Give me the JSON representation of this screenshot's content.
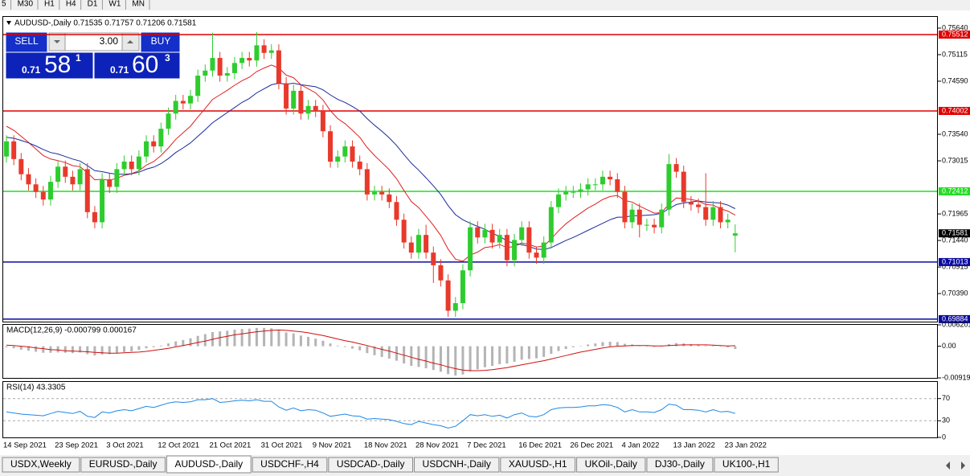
{
  "toolbar": {
    "timeframes": [
      "5",
      "M30",
      "H1",
      "H4",
      "D1",
      "W1",
      "MN"
    ]
  },
  "trade_panel": {
    "sell_label": "SELL",
    "buy_label": "BUY",
    "volume": "3.00",
    "sell_price": [
      "0.71",
      "58",
      "1"
    ],
    "buy_price": [
      "0.71",
      "60",
      "3"
    ]
  },
  "chart_data": [
    {
      "type": "candlestick",
      "title": "AUDUSD-,Daily  0.71535 0.71757 0.71206 0.71581",
      "categories": [
        "14 Sep 2021",
        null,
        null,
        null,
        null,
        null,
        null,
        "23 Sep 2021",
        null,
        null,
        null,
        null,
        null,
        null,
        "3 Oct 2021",
        null,
        null,
        null,
        null,
        null,
        null,
        "12 Oct 2021",
        null,
        null,
        null,
        null,
        null,
        null,
        "21 Oct 2021",
        null,
        null,
        null,
        null,
        null,
        null,
        "31 Oct 2021",
        null,
        null,
        null,
        null,
        null,
        null,
        "9 Nov 2021",
        null,
        null,
        null,
        null,
        null,
        null,
        "18 Nov 2021",
        null,
        null,
        null,
        null,
        null,
        null,
        "28 Nov 2021",
        null,
        null,
        null,
        null,
        null,
        null,
        "7 Dec 2021",
        null,
        null,
        null,
        null,
        null,
        null,
        "16 Dec 2021",
        null,
        null,
        null,
        null,
        null,
        null,
        "26 Dec 2021",
        null,
        null,
        null,
        null,
        null,
        null,
        "4 Jan 2022",
        null,
        null,
        null,
        null,
        null,
        null,
        "13 Jan 2022",
        null,
        null,
        null,
        null,
        null,
        null,
        "23 Jan 2022",
        null
      ],
      "open": [
        0.731,
        0.734,
        0.7305,
        0.7275,
        0.7255,
        0.724,
        0.7225,
        0.726,
        0.729,
        0.727,
        0.7255,
        0.7285,
        0.72,
        0.718,
        0.7265,
        0.725,
        0.7285,
        0.73,
        0.7285,
        0.731,
        0.734,
        0.733,
        0.7365,
        0.7395,
        0.742,
        0.7415,
        0.743,
        0.747,
        0.748,
        0.7505,
        0.747,
        0.7475,
        0.7495,
        0.7505,
        0.75,
        0.753,
        0.7515,
        0.752,
        0.7455,
        0.7405,
        0.744,
        0.7395,
        0.741,
        0.74,
        0.736,
        0.73,
        0.731,
        0.733,
        0.73,
        0.7285,
        0.7235,
        0.724,
        0.7235,
        0.722,
        0.7185,
        0.714,
        0.712,
        0.7155,
        0.712,
        0.7095,
        0.7065,
        0.7005,
        0.702,
        0.7085,
        0.717,
        0.715,
        0.7165,
        0.714,
        0.7155,
        0.7105,
        0.7145,
        0.717,
        0.712,
        0.711,
        0.714,
        0.721,
        0.7235,
        0.724,
        0.724,
        0.7245,
        0.7255,
        0.7255,
        0.727,
        0.7265,
        0.724,
        0.718,
        0.7205,
        0.7175,
        0.7175,
        0.717,
        0.7205,
        0.7295,
        0.728,
        0.722,
        0.7215,
        0.721,
        0.7185,
        0.721,
        0.718,
        0.71535
      ],
      "high": [
        0.7352,
        0.7352,
        0.7317,
        0.7287,
        0.7267,
        0.7252,
        0.7272,
        0.7302,
        0.7302,
        0.7282,
        0.7297,
        0.7297,
        0.7212,
        0.7277,
        0.7277,
        0.7297,
        0.7312,
        0.7312,
        0.7322,
        0.7352,
        0.7352,
        0.7377,
        0.7407,
        0.7432,
        0.7432,
        0.7442,
        0.7482,
        0.7492,
        0.7555,
        0.7517,
        0.7487,
        0.7507,
        0.7517,
        0.7517,
        0.7556,
        0.7542,
        0.7532,
        0.7532,
        0.7467,
        0.7452,
        0.7452,
        0.7422,
        0.7422,
        0.7412,
        0.7372,
        0.7322,
        0.7342,
        0.7342,
        0.7312,
        0.7297,
        0.7252,
        0.7252,
        0.7247,
        0.7232,
        0.7197,
        0.7152,
        0.7167,
        0.7175,
        0.7132,
        0.7107,
        0.7077,
        0.7032,
        0.7097,
        0.7182,
        0.7182,
        0.7177,
        0.7177,
        0.7167,
        0.7167,
        0.7157,
        0.7182,
        0.7182,
        0.7132,
        0.7152,
        0.7222,
        0.7247,
        0.7252,
        0.7252,
        0.7257,
        0.7267,
        0.7267,
        0.7282,
        0.7282,
        0.7277,
        0.7252,
        0.7217,
        0.7217,
        0.7187,
        0.7187,
        0.7217,
        0.7315,
        0.7307,
        0.7292,
        0.7232,
        0.7227,
        0.7277,
        0.7222,
        0.7222,
        0.7197,
        0.71757
      ],
      "low": [
        0.7298,
        0.7293,
        0.7263,
        0.7243,
        0.7228,
        0.7213,
        0.7213,
        0.7248,
        0.7258,
        0.7243,
        0.7243,
        0.7188,
        0.7168,
        0.7168,
        0.7238,
        0.7238,
        0.7273,
        0.7273,
        0.7273,
        0.7298,
        0.7318,
        0.7318,
        0.7353,
        0.7383,
        0.7403,
        0.7403,
        0.7418,
        0.7458,
        0.7468,
        0.7458,
        0.7458,
        0.7463,
        0.7483,
        0.7488,
        0.7488,
        0.7503,
        0.7503,
        0.7443,
        0.7393,
        0.7393,
        0.7383,
        0.7383,
        0.7388,
        0.7348,
        0.7288,
        0.7288,
        0.7298,
        0.7288,
        0.7273,
        0.7223,
        0.7223,
        0.7223,
        0.7208,
        0.7173,
        0.7128,
        0.7108,
        0.7108,
        0.7108,
        0.706,
        0.7053,
        0.6993,
        0.6993,
        0.7008,
        0.7073,
        0.7138,
        0.7138,
        0.7128,
        0.7128,
        0.7093,
        0.7093,
        0.7133,
        0.7108,
        0.7098,
        0.7098,
        0.7128,
        0.7198,
        0.7223,
        0.7228,
        0.7228,
        0.7233,
        0.7243,
        0.7243,
        0.7253,
        0.7228,
        0.7168,
        0.7168,
        0.715,
        0.7163,
        0.7158,
        0.7158,
        0.7193,
        0.7268,
        0.7208,
        0.7203,
        0.7198,
        0.7173,
        0.7173,
        0.7168,
        0.7168,
        0.71206
      ],
      "close": [
        0.734,
        0.7305,
        0.7275,
        0.7255,
        0.724,
        0.7225,
        0.726,
        0.729,
        0.727,
        0.7255,
        0.7285,
        0.72,
        0.718,
        0.7265,
        0.725,
        0.7285,
        0.73,
        0.7285,
        0.731,
        0.734,
        0.733,
        0.7365,
        0.7395,
        0.742,
        0.7415,
        0.743,
        0.747,
        0.748,
        0.7505,
        0.747,
        0.7475,
        0.7495,
        0.7505,
        0.75,
        0.753,
        0.7515,
        0.752,
        0.7455,
        0.7405,
        0.744,
        0.7395,
        0.741,
        0.74,
        0.736,
        0.73,
        0.731,
        0.733,
        0.73,
        0.7285,
        0.7235,
        0.724,
        0.7235,
        0.722,
        0.7185,
        0.714,
        0.712,
        0.7155,
        0.712,
        0.7095,
        0.7065,
        0.7005,
        0.702,
        0.7085,
        0.717,
        0.715,
        0.7165,
        0.714,
        0.7155,
        0.7105,
        0.7145,
        0.717,
        0.712,
        0.711,
        0.714,
        0.721,
        0.7235,
        0.724,
        0.724,
        0.7245,
        0.7255,
        0.7255,
        0.727,
        0.7265,
        0.724,
        0.718,
        0.7205,
        0.7175,
        0.7175,
        0.717,
        0.7205,
        0.7295,
        0.728,
        0.722,
        0.7215,
        0.721,
        0.7185,
        0.721,
        0.718,
        0.7185,
        0.71581
      ],
      "up_color": "#2ecc2e",
      "down_color": "#e8392b",
      "series": [
        {
          "color": "#e02020",
          "values": [
            0.737,
            0.7362,
            0.735,
            0.7338,
            0.7325,
            0.7312,
            0.7305,
            0.7302,
            0.7298,
            0.7292,
            0.729,
            0.7278,
            0.7264,
            0.7265,
            0.7263,
            0.7267,
            0.7273,
            0.7276,
            0.7282,
            0.7293,
            0.73,
            0.7312,
            0.7327,
            0.7344,
            0.7357,
            0.737,
            0.7388,
            0.7405,
            0.7423,
            0.7432,
            0.7441,
            0.7451,
            0.746,
            0.7467,
            0.7478,
            0.7485,
            0.7491,
            0.7485,
            0.7471,
            0.7466,
            0.7452,
            0.7444,
            0.7436,
            0.7422,
            0.7401,
            0.7385,
            0.7375,
            0.7362,
            0.7348,
            0.7328,
            0.7312,
            0.7298,
            0.7284,
            0.7266,
            0.7243,
            0.7221,
            0.7209,
            0.7192,
            0.7174,
            0.7154,
            0.7127,
            0.7107,
            0.7103,
            0.7115,
            0.7121,
            0.713,
            0.7132,
            0.7136,
            0.713,
            0.7132,
            0.7139,
            0.7136,
            0.7131,
            0.7133,
            0.7147,
            0.7163,
            0.7177,
            0.7188,
            0.7198,
            0.7208,
            0.7216,
            0.7225,
            0.7231,
            0.7233,
            0.7223,
            0.722,
            0.7212,
            0.7205,
            0.7198,
            0.7199,
            0.7216,
            0.7228,
            0.7227,
            0.7225,
            0.7222,
            0.7215,
            0.7214,
            0.7207,
            0.7202,
            0.7194
          ]
        },
        {
          "color": "#1a2a9a",
          "values": [
            0.7348,
            0.7346,
            0.7342,
            0.7337,
            0.7331,
            0.7324,
            0.7318,
            0.7315,
            0.731,
            0.7305,
            0.7301,
            0.7292,
            0.7282,
            0.728,
            0.7277,
            0.7275,
            0.7275,
            0.7276,
            0.7279,
            0.7285,
            0.7289,
            0.7296,
            0.7306,
            0.7318,
            0.7327,
            0.7337,
            0.735,
            0.7363,
            0.7377,
            0.7387,
            0.7397,
            0.7407,
            0.7417,
            0.7425,
            0.7436,
            0.7444,
            0.7452,
            0.7455,
            0.7453,
            0.7455,
            0.7452,
            0.745,
            0.7448,
            0.7442,
            0.7432,
            0.7423,
            0.7417,
            0.7409,
            0.74,
            0.7385,
            0.7372,
            0.736,
            0.7347,
            0.7332,
            0.7314,
            0.7297,
            0.7283,
            0.7268,
            0.7252,
            0.7235,
            0.7213,
            0.7195,
            0.7185,
            0.7178,
            0.7172,
            0.7166,
            0.7158,
            0.7152,
            0.7143,
            0.7138,
            0.7136,
            0.7132,
            0.7127,
            0.7126,
            0.713,
            0.7137,
            0.7144,
            0.715,
            0.7157,
            0.7164,
            0.7171,
            0.7178,
            0.7185,
            0.719,
            0.719,
            0.7193,
            0.7193,
            0.7194,
            0.7195,
            0.7198,
            0.7207,
            0.7215,
            0.7218,
            0.722,
            0.7222,
            0.722,
            0.7219,
            0.7218,
            0.7214,
            0.7207
          ]
        }
      ],
      "levels": [
        {
          "value": 0.75512,
          "color": "#e00000"
        },
        {
          "value": 0.74002,
          "color": "#e00000"
        },
        {
          "value": 0.72412,
          "color": "#22dd22"
        },
        {
          "value": 0.71013,
          "color": "#0a0aa0"
        },
        {
          "value": 0.69884,
          "color": "#0a0aa0"
        }
      ],
      "ylim": [
        0.69835,
        0.75862
      ],
      "yticks": [
        {
          "value": 0.7564,
          "label": "0.75640"
        },
        0.75115,
        {
          "value": 0.7459,
          "label": "0.74590"
        },
        {
          "value": 0.7354,
          "label": "0.73540"
        },
        0.73015,
        0.71965,
        {
          "value": 0.7144,
          "label": "0.71440"
        },
        0.70915,
        {
          "value": 0.7039,
          "label": "0.70390"
        }
      ]
    },
    {
      "type": "macd",
      "title": "MACD(12,26,9) -0.000799 0.000167",
      "color": "#b4b4b4",
      "values": [
        -0.0003,
        -0.0006,
        -0.001,
        -0.0013,
        -0.0016,
        -0.0019,
        -0.0019,
        -0.0018,
        -0.0019,
        -0.002,
        -0.0018,
        -0.0023,
        -0.0027,
        -0.0024,
        -0.0023,
        -0.002,
        -0.0017,
        -0.0015,
        -0.0011,
        -0.0006,
        -0.0003,
        0.0002,
        0.0008,
        0.0014,
        0.0018,
        0.0023,
        0.003,
        0.0035,
        0.0041,
        0.0043,
        0.0045,
        0.0048,
        0.005,
        0.0051,
        0.0053,
        0.0053,
        0.0052,
        0.0047,
        0.004,
        0.0037,
        0.0031,
        0.0027,
        0.0022,
        0.0016,
        0.0008,
        0.0002,
        -0.0002,
        -0.0007,
        -0.0012,
        -0.002,
        -0.0026,
        -0.0031,
        -0.0036,
        -0.0042,
        -0.005,
        -0.0057,
        -0.006,
        -0.0064,
        -0.0069,
        -0.0074,
        -0.0081,
        -0.0085,
        -0.0082,
        -0.0073,
        -0.0067,
        -0.0061,
        -0.0057,
        -0.0052,
        -0.005,
        -0.0045,
        -0.0039,
        -0.0037,
        -0.0035,
        -0.0031,
        -0.0022,
        -0.0014,
        -0.0008,
        -0.0003,
        0.0001,
        0.0005,
        0.0008,
        0.0012,
        0.0013,
        0.0012,
        0.0007,
        0.0005,
        0.0002,
        0.0,
        -0.0002,
        -0.0001,
        0.0006,
        0.0009,
        0.0008,
        0.0006,
        0.0005,
        0.0002,
        0.0002,
        -0.0001,
        -0.0003,
        -0.000799
      ],
      "series": [
        {
          "color": "#d01010",
          "values": [
            0.0003,
            0.0002,
            0.0,
            -0.0002,
            -0.0005,
            -0.0007,
            -0.001,
            -0.0011,
            -0.0013,
            -0.0014,
            -0.0015,
            -0.0016,
            -0.0018,
            -0.0019,
            -0.002,
            -0.002,
            -0.0019,
            -0.0018,
            -0.0017,
            -0.0015,
            -0.0012,
            -0.0009,
            -0.0006,
            -0.0002,
            0.0002,
            0.0006,
            0.0011,
            0.0015,
            0.002,
            0.0025,
            0.0029,
            0.0033,
            0.0036,
            0.0039,
            0.0042,
            0.0044,
            0.0046,
            0.0047,
            0.0046,
            0.0044,
            0.0042,
            0.0039,
            0.0035,
            0.0031,
            0.0026,
            0.0021,
            0.0016,
            0.0012,
            0.0007,
            0.0002,
            -0.0004,
            -0.0009,
            -0.0014,
            -0.002,
            -0.0026,
            -0.0032,
            -0.0038,
            -0.0043,
            -0.0049,
            -0.0054,
            -0.006,
            -0.0065,
            -0.0069,
            -0.0071,
            -0.0071,
            -0.007,
            -0.0068,
            -0.0065,
            -0.0062,
            -0.0058,
            -0.0054,
            -0.005,
            -0.0046,
            -0.0042,
            -0.0037,
            -0.0032,
            -0.0027,
            -0.0022,
            -0.0017,
            -0.0013,
            -0.0009,
            -0.0005,
            -0.0002,
            0.0,
            0.0001,
            0.0002,
            0.0002,
            0.0002,
            0.0001,
            0.0001,
            0.0002,
            0.0003,
            0.0004,
            0.0004,
            0.0004,
            0.0004,
            0.0003,
            0.0002,
            0.0001,
            0.000167
          ]
        }
      ],
      "ylim": [
        -0.00919,
        0.006201
      ],
      "yticks": [
        0.006201,
        {
          "value": 0,
          "label": "0.00"
        },
        -0.00919
      ]
    },
    {
      "type": "rsi",
      "title": "RSI(14) 43.3305",
      "series": [
        {
          "color": "#1e88e5",
          "values": [
            46,
            44,
            42,
            41,
            40,
            39,
            43,
            47,
            45,
            43,
            47,
            38,
            36,
            46,
            44,
            48,
            50,
            48,
            52,
            56,
            54,
            58,
            62,
            64,
            63,
            64,
            68,
            68,
            70,
            63,
            64,
            66,
            67,
            66,
            68,
            65,
            65,
            55,
            49,
            53,
            48,
            50,
            49,
            44,
            38,
            40,
            42,
            39,
            38,
            33,
            34,
            33,
            32,
            29,
            25,
            23,
            29,
            26,
            23,
            21,
            17,
            20,
            30,
            41,
            39,
            41,
            38,
            40,
            35,
            41,
            44,
            38,
            37,
            41,
            50,
            53,
            54,
            54,
            55,
            57,
            57,
            59,
            58,
            54,
            46,
            50,
            46,
            46,
            45,
            50,
            60,
            58,
            50,
            50,
            49,
            46,
            50,
            46,
            47,
            43.3305
          ]
        }
      ],
      "ylim": [
        0,
        100
      ],
      "yticks": [
        70,
        30,
        0
      ]
    }
  ],
  "tabs": [
    "USDX,Weekly",
    "EURUSD-,Daily",
    "AUDUSD-,Daily",
    "USDCHF-,H4",
    "USDCAD-,Daily",
    "USDCNH-,Daily",
    "XAUUSD-,H1",
    "UKOil-,Daily",
    "DJ30-,Daily",
    "UK100-,H1"
  ]
}
